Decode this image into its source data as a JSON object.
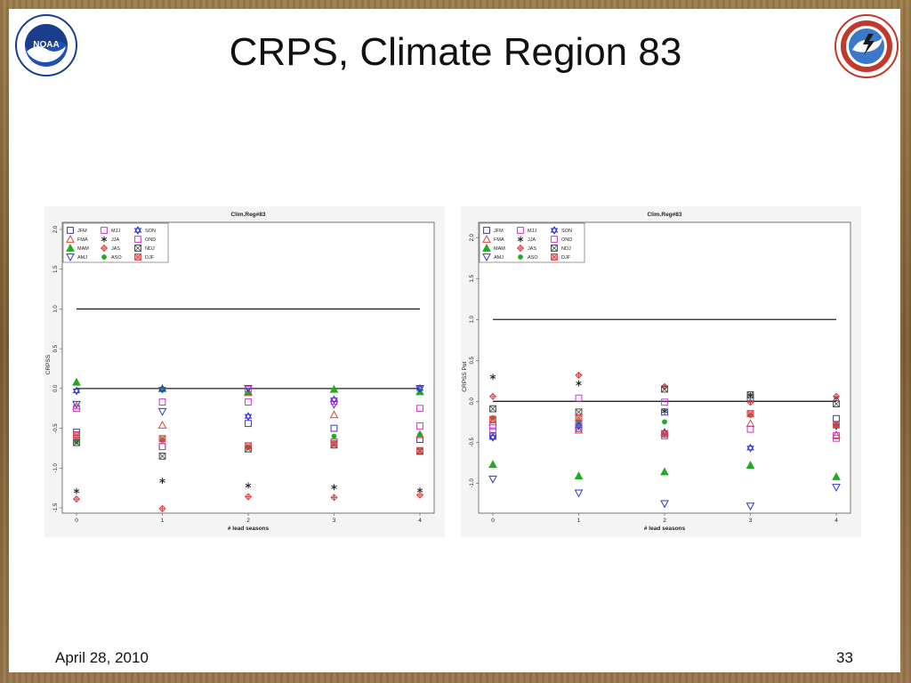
{
  "slide": {
    "title": "CRPS, Climate Region 83",
    "footer_date": "April 28, 2010",
    "slide_number": "33"
  },
  "logos": {
    "left": "NOAA logo",
    "left_ring_text": "NATIONAL OCEANIC AND ATMOSPHERIC ADMINISTRATION · U.S. DEPARTMENT OF COMMERCE",
    "left_center_text": "NOAA",
    "right": "National Weather Service logo",
    "right_ring_text": "NATIONAL WEATHER SERVICE"
  },
  "legend": [
    {
      "name": "JFM",
      "marker": "square",
      "color": "#3a3a9a"
    },
    {
      "name": "FMA",
      "marker": "triangle",
      "color": "#e04040"
    },
    {
      "name": "MAM",
      "marker": "triangle-filled",
      "color": "#22aa22"
    },
    {
      "name": "AMJ",
      "marker": "triangle-down",
      "color": "#3333dd"
    },
    {
      "name": "MJJ",
      "marker": "square",
      "color": "#cc33cc"
    },
    {
      "name": "JJA",
      "marker": "asterisk",
      "color": "#222222"
    },
    {
      "name": "JAS",
      "marker": "diamond-plus",
      "color": "#e04040"
    },
    {
      "name": "ASO",
      "marker": "circle-filled",
      "color": "#22aa22"
    },
    {
      "name": "SON",
      "marker": "star-david",
      "color": "#3333dd"
    },
    {
      "name": "OND",
      "marker": "square",
      "color": "#cc33cc"
    },
    {
      "name": "NDJ",
      "marker": "square-x",
      "color": "#444444"
    },
    {
      "name": "DJF",
      "marker": "square-x-filled",
      "color": "#e04040"
    }
  ],
  "chart_data": [
    {
      "type": "scatter",
      "title": "Clim.Reg#83",
      "xlabel": "# lead seasons",
      "ylabel": "CRPSS",
      "xlim": [
        0,
        4
      ],
      "ylim": [
        -1.5,
        2.0
      ],
      "xticks": [
        "0",
        "1",
        "2",
        "3",
        "4"
      ],
      "yticks": [
        "-1.5",
        "-1.0",
        "-0.5",
        "0.0",
        "0.5",
        "1.0",
        "1.5",
        "2.0"
      ],
      "hlines": [
        1.0,
        0.0
      ],
      "x": [
        0,
        1,
        2,
        3,
        4
      ],
      "series": [
        {
          "name": "JFM",
          "values": [
            -0.55,
            -0.73,
            -0.44,
            -0.5,
            -0.64
          ]
        },
        {
          "name": "FMA",
          "values": [
            -0.22,
            -0.46,
            -0.05,
            -0.33,
            -0.58
          ]
        },
        {
          "name": "MAM",
          "values": [
            0.08,
            0.0,
            -0.04,
            -0.01,
            -0.04
          ]
        },
        {
          "name": "AMJ",
          "values": [
            -0.2,
            -0.29,
            0.0,
            -0.2,
            0.0
          ]
        },
        {
          "name": "MJJ",
          "values": [
            -0.58,
            -0.73,
            -0.01,
            -0.67,
            -0.47
          ]
        },
        {
          "name": "JJA",
          "values": [
            -1.29,
            -1.16,
            -1.22,
            -1.24,
            -1.28
          ]
        },
        {
          "name": "JAS",
          "values": [
            -1.39,
            -1.51,
            -1.36,
            -1.37,
            -1.34
          ]
        },
        {
          "name": "ASO",
          "values": [
            -0.67,
            -0.65,
            -0.74,
            -0.6,
            -0.58
          ]
        },
        {
          "name": "SON",
          "values": [
            -0.03,
            -0.01,
            -0.35,
            -0.14,
            0.0
          ]
        },
        {
          "name": "OND",
          "values": [
            -0.25,
            -0.17,
            -0.17,
            -0.16,
            -0.25
          ]
        },
        {
          "name": "NDJ",
          "values": [
            -0.68,
            -0.85,
            -0.76,
            -0.71,
            -0.79
          ]
        },
        {
          "name": "DJF",
          "values": [
            -0.59,
            -0.63,
            -0.72,
            -0.69,
            -0.78
          ]
        }
      ]
    },
    {
      "type": "scatter",
      "title": "Clim.Reg#83",
      "xlabel": "# lead seasons",
      "ylabel": "CRPSS Pot",
      "xlim": [
        0,
        4
      ],
      "ylim": [
        -1.3,
        2.1
      ],
      "xticks": [
        "0",
        "1",
        "2",
        "3",
        "4"
      ],
      "yticks": [
        "-1.0",
        "-0.5",
        "0.0",
        "0.5",
        "1.0",
        "1.5",
        "2.0"
      ],
      "hlines": [
        1.0,
        0.0
      ],
      "x": [
        0,
        1,
        2,
        3,
        4
      ],
      "series": [
        {
          "name": "JFM",
          "values": [
            -0.42,
            -0.33,
            -0.13,
            0.04,
            -0.21
          ]
        },
        {
          "name": "FMA",
          "values": [
            -0.25,
            -0.35,
            -0.38,
            -0.27,
            -0.41
          ]
        },
        {
          "name": "MAM",
          "values": [
            -0.77,
            -0.91,
            -0.86,
            -0.78,
            -0.92
          ]
        },
        {
          "name": "AMJ",
          "values": [
            -0.95,
            -1.12,
            -1.25,
            -1.28,
            -1.05
          ]
        },
        {
          "name": "MJJ",
          "values": [
            -0.36,
            0.04,
            -0.01,
            -0.34,
            -0.45
          ]
        },
        {
          "name": "JJA",
          "values": [
            0.3,
            0.22,
            -0.12,
            0.07,
            0.04
          ]
        },
        {
          "name": "JAS",
          "values": [
            0.06,
            0.32,
            0.18,
            -0.01,
            0.06
          ]
        },
        {
          "name": "ASO",
          "values": [
            -0.2,
            -0.25,
            -0.25,
            -0.17,
            -0.3
          ]
        },
        {
          "name": "SON",
          "values": [
            -0.44,
            -0.3,
            -0.38,
            -0.57,
            -0.3
          ]
        },
        {
          "name": "OND",
          "values": [
            -0.3,
            -0.27,
            -0.42,
            -0.15,
            -0.42
          ]
        },
        {
          "name": "NDJ",
          "values": [
            -0.09,
            -0.13,
            0.15,
            0.08,
            -0.03
          ]
        },
        {
          "name": "DJF",
          "values": [
            -0.22,
            -0.2,
            -0.4,
            -0.15,
            -0.28
          ]
        }
      ]
    }
  ]
}
